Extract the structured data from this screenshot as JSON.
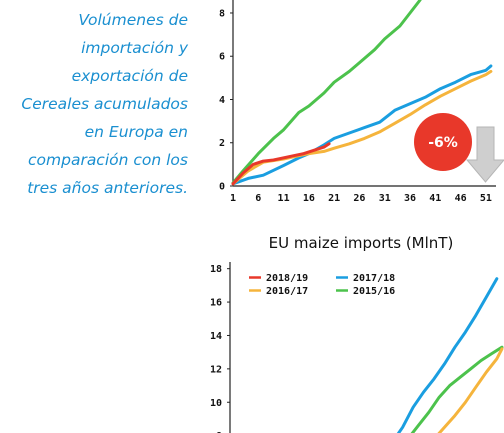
{
  "caption": {
    "lines": [
      "Volúmenes de",
      "importación y",
      "exportación de",
      "Cereales acumulados",
      "en Europa en",
      "comparación con los",
      "tres años anteriores."
    ]
  },
  "badge": {
    "text": "-6%",
    "color": "#e8382a",
    "arrow": "down-arrow-icon"
  },
  "colors": {
    "2018/19": "#e8382a",
    "2017/18": "#1a9ee0",
    "2016/17": "#f5b43c",
    "2015/16": "#4cc24c"
  },
  "chart_data": [
    {
      "type": "line",
      "title": "",
      "xlabel": "",
      "ylabel": "",
      "x_ticks": [
        "1",
        "6",
        "11",
        "16",
        "21",
        "26",
        "31",
        "36",
        "41",
        "46",
        "51"
      ],
      "y_ticks": [
        "0",
        "2",
        "4",
        "6",
        "8"
      ],
      "xlim": [
        1,
        53
      ],
      "ylim": [
        0,
        8.6
      ],
      "grid": false,
      "legend": "none",
      "series": [
        {
          "key": "2015/16",
          "color": "#4cc24c",
          "x": [
            1,
            3,
            6,
            9,
            11,
            14,
            16,
            19,
            21,
            24,
            26,
            29,
            31,
            34,
            36,
            38
          ],
          "values": [
            0.15,
            0.7,
            1.5,
            2.2,
            2.6,
            3.4,
            3.7,
            4.3,
            4.8,
            5.3,
            5.7,
            6.3,
            6.8,
            7.4,
            8.0,
            8.6
          ]
        },
        {
          "key": "2017/18",
          "color": "#1a9ee0",
          "x": [
            1,
            4,
            7,
            11,
            14,
            16,
            19,
            21,
            24,
            27,
            30,
            33,
            36,
            39,
            42,
            45,
            48,
            51,
            52
          ],
          "values": [
            0.1,
            0.35,
            0.5,
            0.95,
            1.3,
            1.5,
            1.9,
            2.2,
            2.45,
            2.7,
            2.95,
            3.5,
            3.8,
            4.1,
            4.5,
            4.8,
            5.15,
            5.35,
            5.55
          ]
        },
        {
          "key": "2016/17",
          "color": "#f5b43c",
          "x": [
            1,
            4,
            7,
            11,
            14,
            16,
            19,
            21,
            24,
            27,
            30,
            33,
            36,
            39,
            42,
            45,
            48,
            51,
            52
          ],
          "values": [
            0.1,
            0.7,
            1.1,
            1.25,
            1.4,
            1.5,
            1.6,
            1.75,
            1.95,
            2.2,
            2.5,
            2.9,
            3.3,
            3.75,
            4.15,
            4.5,
            4.85,
            5.15,
            5.3
          ]
        },
        {
          "key": "2018/19",
          "color": "#e8382a",
          "x": [
            1,
            3,
            5,
            7,
            9,
            11,
            13,
            15,
            17,
            19,
            20
          ],
          "values": [
            0.1,
            0.6,
            1.0,
            1.15,
            1.2,
            1.3,
            1.4,
            1.5,
            1.65,
            1.8,
            1.95
          ]
        }
      ]
    },
    {
      "type": "line",
      "title": "EU maize imports (MlnT)",
      "xlabel": "",
      "ylabel": "",
      "y_ticks": [
        "8",
        "10",
        "12",
        "14",
        "16",
        "18"
      ],
      "xlim": [
        1,
        53
      ],
      "ylim": [
        7.5,
        18.4
      ],
      "grid": false,
      "legend": "top-left",
      "legend_entries": [
        {
          "label": "2018/19",
          "color": "#e8382a"
        },
        {
          "label": "2017/18",
          "color": "#1a9ee0"
        },
        {
          "label": "2016/17",
          "color": "#f5b43c"
        },
        {
          "label": "2015/16",
          "color": "#4cc24c"
        }
      ],
      "series": [
        {
          "key": "2017/18",
          "color": "#1a9ee0",
          "x": [
            32,
            34,
            36,
            38,
            40,
            42,
            44,
            46,
            48,
            50,
            52
          ],
          "values": [
            7.6,
            8.5,
            9.7,
            10.6,
            11.4,
            12.3,
            13.3,
            14.2,
            15.2,
            16.3,
            17.4
          ]
        },
        {
          "key": "2015/16",
          "color": "#4cc24c",
          "x": [
            35,
            37,
            39,
            41,
            43,
            45,
            47,
            49,
            51,
            53
          ],
          "values": [
            7.8,
            8.6,
            9.4,
            10.3,
            11.0,
            11.5,
            12.0,
            12.5,
            12.9,
            13.3
          ]
        },
        {
          "key": "2016/17",
          "color": "#f5b43c",
          "x": [
            40,
            42,
            44,
            46,
            48,
            50,
            52,
            53
          ],
          "values": [
            7.8,
            8.5,
            9.2,
            10.0,
            10.9,
            11.8,
            12.6,
            13.2
          ]
        }
      ]
    }
  ]
}
